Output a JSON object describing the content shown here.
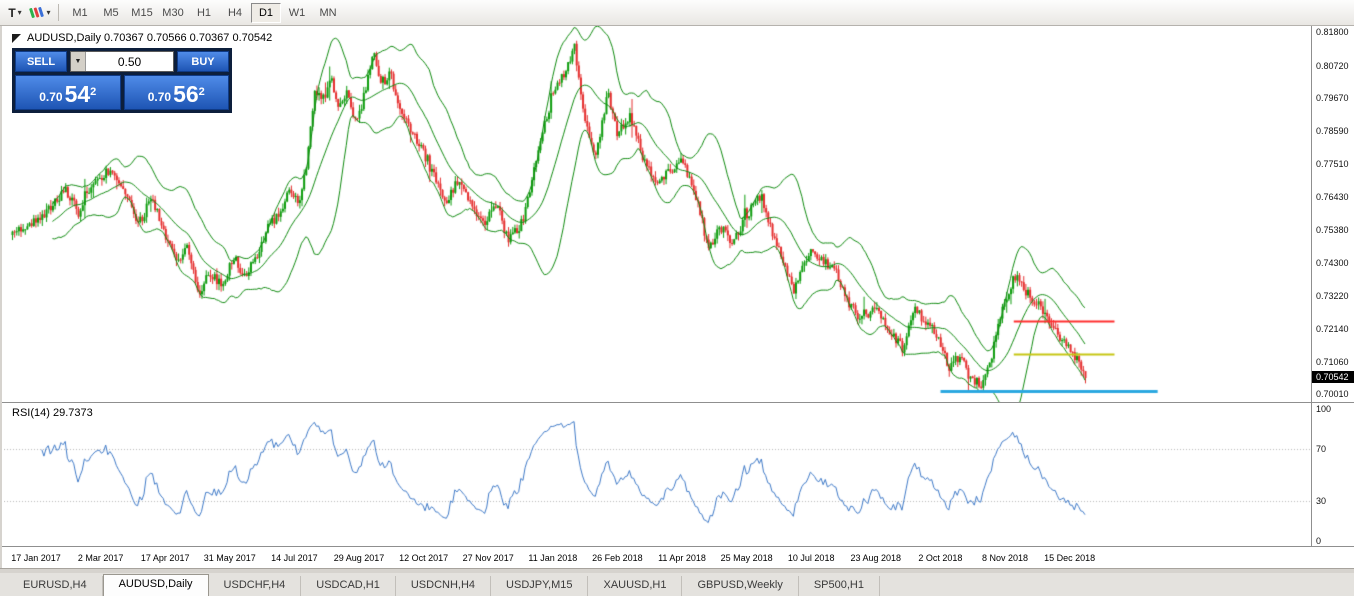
{
  "colors": {
    "candle_up": "#0f9d0f",
    "candle_down": "#e53030",
    "bollinger": "#0f8a0f",
    "rsi_line": "#3e79c7",
    "rsi_level": "#b8b8b8",
    "hline_red": "#ff2e2e",
    "hline_yellow": "#c6c613",
    "hline_blue": "#2ba8e0",
    "badge_bg": "#000000",
    "badge_text": "#ffffff",
    "button_blue": "#1e55b4"
  },
  "toolbar": {
    "text_tool_label": "T",
    "timeframes": [
      "M1",
      "M5",
      "M15",
      "M30",
      "H1",
      "H4",
      "D1",
      "W1",
      "MN"
    ],
    "active_timeframe": "D1"
  },
  "chart": {
    "info_line": "AUDUSD,Daily 0.70367 0.70566 0.70367 0.70542"
  },
  "trade_panel": {
    "sell_label": "SELL",
    "buy_label": "BUY",
    "lot_value": "0.50",
    "sell_price_small": "0.70",
    "sell_price_big": "54",
    "sell_price_sup": "2",
    "buy_price_small": "0.70",
    "buy_price_big": "56",
    "buy_price_sup": "2"
  },
  "price_scale": {
    "current_price": "0.70542"
  },
  "rsi_panel": {
    "label": "RSI(14) 29.7373",
    "scale": [
      "100",
      "70",
      "30",
      "0"
    ]
  },
  "tabs": {
    "items": [
      "EURUSD,H4",
      "AUDUSD,Daily",
      "USDCHF,H4",
      "USDCAD,H1",
      "USDCNH,H4",
      "USDJPY,M15",
      "XAUUSD,H1",
      "GBPUSD,Weekly",
      "SP500,H1"
    ],
    "active_index": 1
  },
  "chart_data": {
    "type": "candlestick",
    "symbol": "AUDUSD",
    "timeframe": "Daily",
    "ohlc": {
      "open": 0.70367,
      "high": 0.70566,
      "low": 0.70367,
      "close": 0.70542
    },
    "n_candles": 505,
    "seed": 9,
    "y_range": [
      0.6976,
      0.8201
    ],
    "y_tick_labels": [
      "0.81800",
      "0.80720",
      "0.79670",
      "0.78590",
      "0.77510",
      "0.76430",
      "0.75380",
      "0.74300",
      "0.73220",
      "0.72140",
      "0.71060",
      "0.70010"
    ],
    "x_labels": [
      "17 Jan 2017",
      "2 Mar 2017",
      "17 Apr 2017",
      "31 May 2017",
      "14 Jul 2017",
      "29 Aug 2017",
      "12 Oct 2017",
      "27 Nov 2017",
      "11 Jan 2018",
      "26 Feb 2018",
      "11 Apr 2018",
      "25 May 2018",
      "10 Jul 2018",
      "23 Aug 2018",
      "2 Oct 2018",
      "8 Nov 2018",
      "15 Dec 2018"
    ],
    "price_anchors": [
      [
        0.0,
        0.752
      ],
      [
        0.02,
        0.756
      ],
      [
        0.035,
        0.761
      ],
      [
        0.05,
        0.7665
      ],
      [
        0.062,
        0.759
      ],
      [
        0.075,
        0.7685
      ],
      [
        0.09,
        0.773
      ],
      [
        0.105,
        0.765
      ],
      [
        0.118,
        0.756
      ],
      [
        0.13,
        0.764
      ],
      [
        0.142,
        0.752
      ],
      [
        0.153,
        0.743
      ],
      [
        0.163,
        0.749
      ],
      [
        0.173,
        0.733
      ],
      [
        0.184,
        0.7395
      ],
      [
        0.196,
        0.735
      ],
      [
        0.206,
        0.745
      ],
      [
        0.216,
        0.739
      ],
      [
        0.228,
        0.7445
      ],
      [
        0.24,
        0.756
      ],
      [
        0.25,
        0.759
      ],
      [
        0.258,
        0.768
      ],
      [
        0.266,
        0.762
      ],
      [
        0.274,
        0.774
      ],
      [
        0.282,
        0.8
      ],
      [
        0.29,
        0.796
      ],
      [
        0.297,
        0.8045
      ],
      [
        0.304,
        0.7925
      ],
      [
        0.312,
        0.799
      ],
      [
        0.32,
        0.7885
      ],
      [
        0.328,
        0.7975
      ],
      [
        0.336,
        0.812
      ],
      [
        0.344,
        0.8005
      ],
      [
        0.352,
        0.805
      ],
      [
        0.36,
        0.795
      ],
      [
        0.37,
        0.787
      ],
      [
        0.38,
        0.7815
      ],
      [
        0.392,
        0.773
      ],
      [
        0.404,
        0.763
      ],
      [
        0.416,
        0.77
      ],
      [
        0.428,
        0.761
      ],
      [
        0.44,
        0.7565
      ],
      [
        0.452,
        0.7615
      ],
      [
        0.462,
        0.75
      ],
      [
        0.476,
        0.7565
      ],
      [
        0.49,
        0.78
      ],
      [
        0.502,
        0.796
      ],
      [
        0.514,
        0.805
      ],
      [
        0.524,
        0.813
      ],
      [
        0.534,
        0.788
      ],
      [
        0.543,
        0.777
      ],
      [
        0.555,
        0.7985
      ],
      [
        0.564,
        0.785
      ],
      [
        0.576,
        0.7905
      ],
      [
        0.588,
        0.777
      ],
      [
        0.6,
        0.7685
      ],
      [
        0.612,
        0.773
      ],
      [
        0.622,
        0.7765
      ],
      [
        0.634,
        0.769
      ],
      [
        0.649,
        0.747
      ],
      [
        0.66,
        0.7545
      ],
      [
        0.671,
        0.75
      ],
      [
        0.683,
        0.7575
      ],
      [
        0.696,
        0.7645
      ],
      [
        0.712,
        0.7495
      ],
      [
        0.728,
        0.734
      ],
      [
        0.742,
        0.7465
      ],
      [
        0.756,
        0.744
      ],
      [
        0.768,
        0.74
      ],
      [
        0.779,
        0.73
      ],
      [
        0.791,
        0.724
      ],
      [
        0.803,
        0.7285
      ],
      [
        0.818,
        0.72
      ],
      [
        0.83,
        0.715
      ],
      [
        0.841,
        0.729
      ],
      [
        0.853,
        0.722
      ],
      [
        0.863,
        0.718
      ],
      [
        0.873,
        0.709
      ],
      [
        0.883,
        0.7125
      ],
      [
        0.893,
        0.706
      ],
      [
        0.903,
        0.703
      ],
      [
        0.913,
        0.7135
      ],
      [
        0.923,
        0.728
      ],
      [
        0.934,
        0.739
      ],
      [
        0.944,
        0.734
      ],
      [
        0.954,
        0.73
      ],
      [
        0.966,
        0.724
      ],
      [
        0.976,
        0.7185
      ],
      [
        0.984,
        0.7165
      ],
      [
        0.992,
        0.711
      ],
      [
        1.0,
        0.70542
      ]
    ],
    "bollinger": {
      "period": 20,
      "deviation": 2
    },
    "rsi": {
      "period": 14,
      "last_value": 29.7373,
      "levels": [
        70,
        30
      ],
      "range": [
        0,
        100
      ]
    },
    "hlines": [
      {
        "price": 0.7239,
        "color_key": "hline_red",
        "x_from": 0.772,
        "x_to": 0.849,
        "width": 2
      },
      {
        "price": 0.7132,
        "color_key": "hline_yellow",
        "x_from": 0.772,
        "x_to": 0.849,
        "width": 2
      },
      {
        "price": 0.7011,
        "color_key": "hline_blue",
        "x_from": 0.716,
        "x_to": 0.882,
        "width": 3
      }
    ]
  }
}
